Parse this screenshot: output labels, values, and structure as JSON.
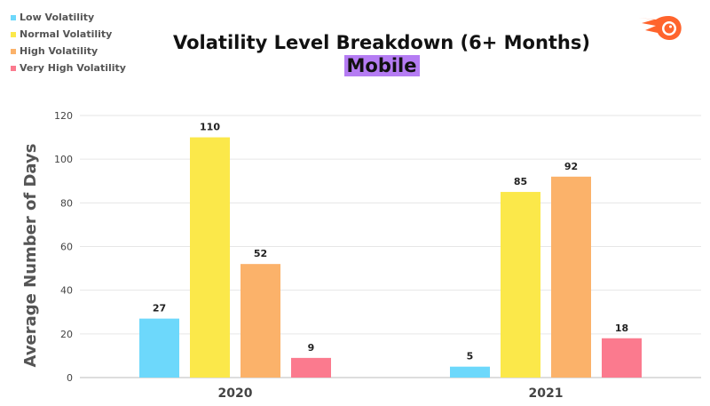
{
  "chart_data": {
    "type": "bar",
    "title": "Volatility Level Breakdown (6+ Months)",
    "subtitle": "Mobile",
    "xlabel": "",
    "ylabel": "Average Number of Days",
    "ylim": [
      0,
      120
    ],
    "yticks": [
      0,
      20,
      40,
      60,
      80,
      100,
      120
    ],
    "grid": true,
    "legend_position": "top-left",
    "categories": [
      "2020",
      "2021"
    ],
    "series": [
      {
        "name": "Low Volatility",
        "color": "#6dd8fb",
        "values": [
          27,
          5
        ]
      },
      {
        "name": "Normal Volatility",
        "color": "#fbe84a",
        "values": [
          110,
          85
        ]
      },
      {
        "name": "High Volatility",
        "color": "#fbb26a",
        "values": [
          52,
          92
        ]
      },
      {
        "name": "Very High Volatility",
        "color": "#fb7a8e",
        "values": [
          9,
          18
        ]
      }
    ]
  },
  "logo": {
    "icon": "semrush-logo-icon",
    "color": "#ff642d"
  }
}
